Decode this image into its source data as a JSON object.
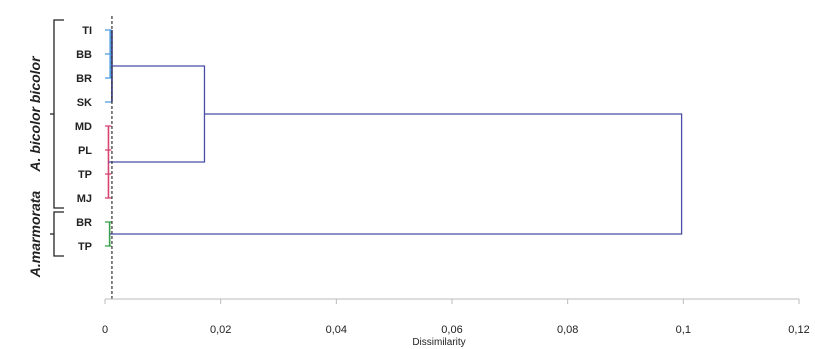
{
  "chart_data": {
    "type": "dendrogram",
    "orientation": "horizontal",
    "xlabel": "Dissimilarity",
    "xlim": [
      0,
      0.12
    ],
    "xticks": [
      0,
      0.02,
      0.04,
      0.06,
      0.08,
      0.1,
      0.12
    ],
    "xtick_labels": [
      "0",
      "0,02",
      "0,04",
      "0,06",
      "0,08",
      "0,1",
      "0,12"
    ],
    "leaves": [
      "TI",
      "BB",
      "BR",
      "SK",
      "MD",
      "PL",
      "TP",
      "MJ",
      "BR",
      "TP"
    ],
    "leaf_colors": [
      "#4d9de0",
      "#4d9de0",
      "#4d9de0",
      "#4d9de0",
      "#d64572",
      "#d64572",
      "#d64572",
      "#d64572",
      "#3aa24a",
      "#3aa24a"
    ],
    "groups": [
      {
        "name": "A. bicolor bicolor",
        "first_leaf": 0,
        "last_leaf": 7
      },
      {
        "name": "A.marmorata",
        "first_leaf": 8,
        "last_leaf": 9
      }
    ],
    "merges": [
      {
        "left": "TI",
        "right": "SK",
        "height": 0.0012
      },
      {
        "left": "MD",
        "right": "MJ",
        "height": 0.0006
      },
      {
        "left": "TI-SK cluster",
        "right": "MD-MJ cluster",
        "height": 0.0172
      },
      {
        "left": "BR",
        "right": "TP",
        "height": 0.0008
      },
      {
        "left": "A. bicolor bicolor cluster",
        "right": "A.marmorata cluster",
        "height": 0.0997
      }
    ],
    "truncation_line": 0.0012,
    "colors": {
      "main_links": "#4b4ea8",
      "subtree_links": "#2b2f8a",
      "truncation_line": "#333333",
      "axis": "#bbbbbb"
    }
  }
}
